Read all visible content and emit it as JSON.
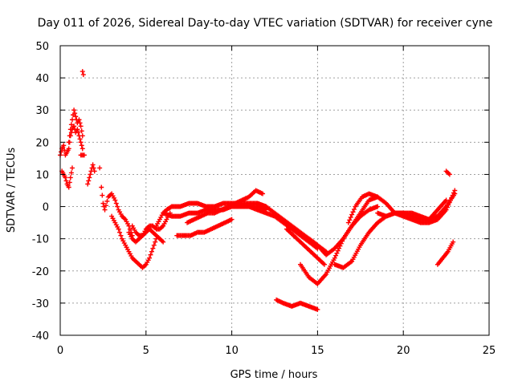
{
  "chart_data": {
    "type": "scatter",
    "title": "Day 011 of 2026, Sidereal Day-to-day VTEC variation (SDTVAR) for receiver cyne",
    "xlabel": "GPS time / hours",
    "ylabel": "SDTVAR / TECUs",
    "xlim": [
      0,
      25
    ],
    "ylim": [
      -40,
      50
    ],
    "xticks": [
      0,
      5,
      10,
      15,
      20,
      25
    ],
    "yticks": [
      -40,
      -30,
      -20,
      -10,
      0,
      10,
      20,
      30,
      40,
      50
    ],
    "grid": true,
    "marker": "plus",
    "color": "#ff0000",
    "series": [
      {
        "name": "t0",
        "x": [
          0.0,
          0.1,
          0.2,
          0.3,
          0.4,
          0.5,
          0.6,
          0.7,
          0.8,
          0.9,
          1.0,
          1.1,
          1.2,
          1.3
        ],
        "y": [
          16,
          18,
          19,
          16,
          17,
          18,
          22,
          24,
          25,
          23,
          24,
          22,
          20,
          18
        ]
      },
      {
        "name": "t1",
        "x": [
          0.1,
          0.2,
          0.3,
          0.4,
          0.5,
          0.6,
          0.7
        ],
        "y": [
          11,
          10,
          9,
          7,
          6,
          9,
          12
        ]
      },
      {
        "name": "t2",
        "x": [
          0.5,
          0.6,
          0.7,
          0.8,
          0.9,
          1.0,
          1.1,
          1.2,
          1.3
        ],
        "y": [
          20,
          24,
          27,
          30,
          28,
          26,
          27,
          25,
          22
        ]
      },
      {
        "name": "t3",
        "x": [
          1.3,
          1.35
        ],
        "y": [
          42,
          41
        ]
      },
      {
        "name": "t4",
        "x": [
          1.2,
          1.4
        ],
        "y": [
          16,
          16
        ]
      },
      {
        "name": "t5",
        "x": [
          1.6,
          1.7,
          1.8,
          1.9,
          2.0
        ],
        "y": [
          7,
          9,
          11,
          13,
          11
        ]
      },
      {
        "name": "t6",
        "x": [
          2.3
        ],
        "y": [
          12
        ]
      },
      {
        "name": "t7",
        "x": [
          2.4,
          2.5,
          2.6,
          2.8,
          3.0,
          3.2,
          3.4,
          3.6,
          3.8,
          4.0,
          4.2
        ],
        "y": [
          6,
          1,
          -1,
          3,
          4,
          2,
          -1,
          -3,
          -4,
          -6,
          -9
        ]
      },
      {
        "name": "t8",
        "x": [
          3.0,
          3.2,
          3.4,
          3.6,
          3.8,
          4.0,
          4.2,
          4.4,
          4.6,
          4.8,
          5.0,
          5.2,
          5.4,
          5.6
        ],
        "y": [
          -3,
          -5,
          -7,
          -10,
          -12,
          -14,
          -16,
          -17,
          -18,
          -19,
          -18,
          -16,
          -13,
          -10
        ]
      },
      {
        "name": "t9",
        "x": [
          4.0,
          4.2,
          4.4,
          4.6,
          4.8,
          5.0,
          5.2,
          5.4,
          5.6,
          5.8,
          6.0,
          6.2,
          6.4
        ],
        "y": [
          -8,
          -10,
          -11,
          -10,
          -9,
          -7,
          -6,
          -6,
          -7,
          -7,
          -6,
          -4,
          -2
        ]
      },
      {
        "name": "t10",
        "x": [
          4.2,
          4.4,
          4.6,
          4.8,
          5.0,
          5.2,
          5.4,
          5.6,
          5.8,
          6.0
        ],
        "y": [
          -6,
          -8,
          -9,
          -9,
          -8,
          -7,
          -8,
          -9,
          -10,
          -11
        ]
      },
      {
        "name": "t11",
        "x": [
          5.6,
          5.8,
          6.0,
          6.2,
          6.5,
          7.0,
          7.5,
          8.0,
          8.5,
          9.0,
          9.5,
          10.0,
          10.5,
          11.0,
          11.5,
          12.0
        ],
        "y": [
          -6,
          -4,
          -2,
          -1,
          0,
          0,
          1,
          1,
          0,
          0,
          1,
          1,
          1,
          1,
          1,
          0
        ]
      },
      {
        "name": "t12",
        "x": [
          6.0,
          6.5,
          7.0,
          7.5,
          8.0,
          8.5,
          9.0,
          9.5,
          10.0,
          10.5,
          11.0,
          11.5,
          12.0
        ],
        "y": [
          -2,
          -3,
          -3,
          -2,
          -2,
          -1,
          -1,
          -1,
          0,
          0,
          0,
          0,
          -1
        ]
      },
      {
        "name": "t13",
        "x": [
          6.8,
          7.2,
          7.6,
          8.0,
          8.4,
          8.8,
          9.2,
          9.6,
          10.0
        ],
        "y": [
          -9,
          -9,
          -9,
          -8,
          -8,
          -7,
          -6,
          -5,
          -4
        ]
      },
      {
        "name": "t14",
        "x": [
          7.4,
          7.8,
          8.2,
          8.6,
          9.0,
          9.4,
          9.8,
          10.2,
          10.6,
          11.0,
          11.4,
          11.8
        ],
        "y": [
          -5,
          -4,
          -3,
          -2,
          -2,
          -1,
          0,
          1,
          2,
          3,
          5,
          4
        ]
      },
      {
        "name": "t15",
        "x": [
          10.0,
          10.5,
          11.0,
          11.5,
          12.0,
          12.5,
          13.0,
          13.5,
          14.0,
          14.5,
          15.0
        ],
        "y": [
          0,
          0,
          0,
          -1,
          -2,
          -3,
          -5,
          -7,
          -9,
          -11,
          -13
        ]
      },
      {
        "name": "t16",
        "x": [
          11.5,
          12.0,
          12.5,
          13.0,
          13.5,
          14.0,
          14.5,
          15.0,
          15.5
        ],
        "y": [
          1,
          0,
          -2,
          -4,
          -6,
          -8,
          -10,
          -12,
          -14
        ]
      },
      {
        "name": "t17",
        "x": [
          13.2,
          13.6,
          14.0,
          14.4,
          14.8,
          15.2,
          15.4
        ],
        "y": [
          -7,
          -9,
          -11,
          -13,
          -15,
          -17,
          -18
        ]
      },
      {
        "name": "t18",
        "x": [
          12.6,
          13.0,
          13.5,
          14.0,
          14.5,
          15.0
        ],
        "y": [
          -29,
          -30,
          -31,
          -30,
          -31,
          -32
        ]
      },
      {
        "name": "t19",
        "x": [
          14.0,
          14.5,
          15.0,
          15.5,
          16.0,
          16.5,
          17.0,
          17.5,
          18.0,
          18.5
        ],
        "y": [
          -18,
          -22,
          -24,
          -21,
          -16,
          -10,
          -6,
          -3,
          -1,
          0
        ]
      },
      {
        "name": "t20",
        "x": [
          14.5,
          15.0,
          15.5,
          16.0,
          16.5,
          17.0,
          17.5,
          18.0,
          18.5
        ],
        "y": [
          -10,
          -12,
          -15,
          -13,
          -10,
          -6,
          -2,
          2,
          3
        ]
      },
      {
        "name": "t21",
        "x": [
          16.0,
          16.5,
          17.0,
          17.5,
          18.0,
          18.5,
          19.0,
          19.5,
          20.0,
          20.5,
          21.0,
          21.5,
          22.0,
          22.5,
          23.0
        ],
        "y": [
          -18,
          -19,
          -17,
          -12,
          -8,
          -5,
          -3,
          -2,
          -2,
          -3,
          -4,
          -4,
          -3,
          0,
          4
        ]
      },
      {
        "name": "t22",
        "x": [
          16.8,
          17.2,
          17.6,
          18.0,
          18.5,
          19.0,
          19.5,
          20.0,
          20.5,
          21.0,
          21.5,
          22.0,
          22.5,
          23.0
        ],
        "y": [
          -5,
          0,
          3,
          4,
          3,
          1,
          -2,
          -3,
          -4,
          -5,
          -5,
          -4,
          -1,
          5
        ]
      },
      {
        "name": "t23",
        "x": [
          18.5,
          19.0,
          19.5,
          20.0,
          20.5,
          21.0,
          21.5,
          22.0,
          22.5
        ],
        "y": [
          -2,
          -3,
          -2,
          -2,
          -2,
          -3,
          -4,
          -1,
          2
        ]
      },
      {
        "name": "t24",
        "x": [
          22.5,
          22.7
        ],
        "y": [
          11,
          10
        ]
      },
      {
        "name": "t25",
        "x": [
          22.0,
          22.3,
          22.6,
          22.9
        ],
        "y": [
          -18,
          -16,
          -14,
          -11
        ]
      }
    ]
  }
}
